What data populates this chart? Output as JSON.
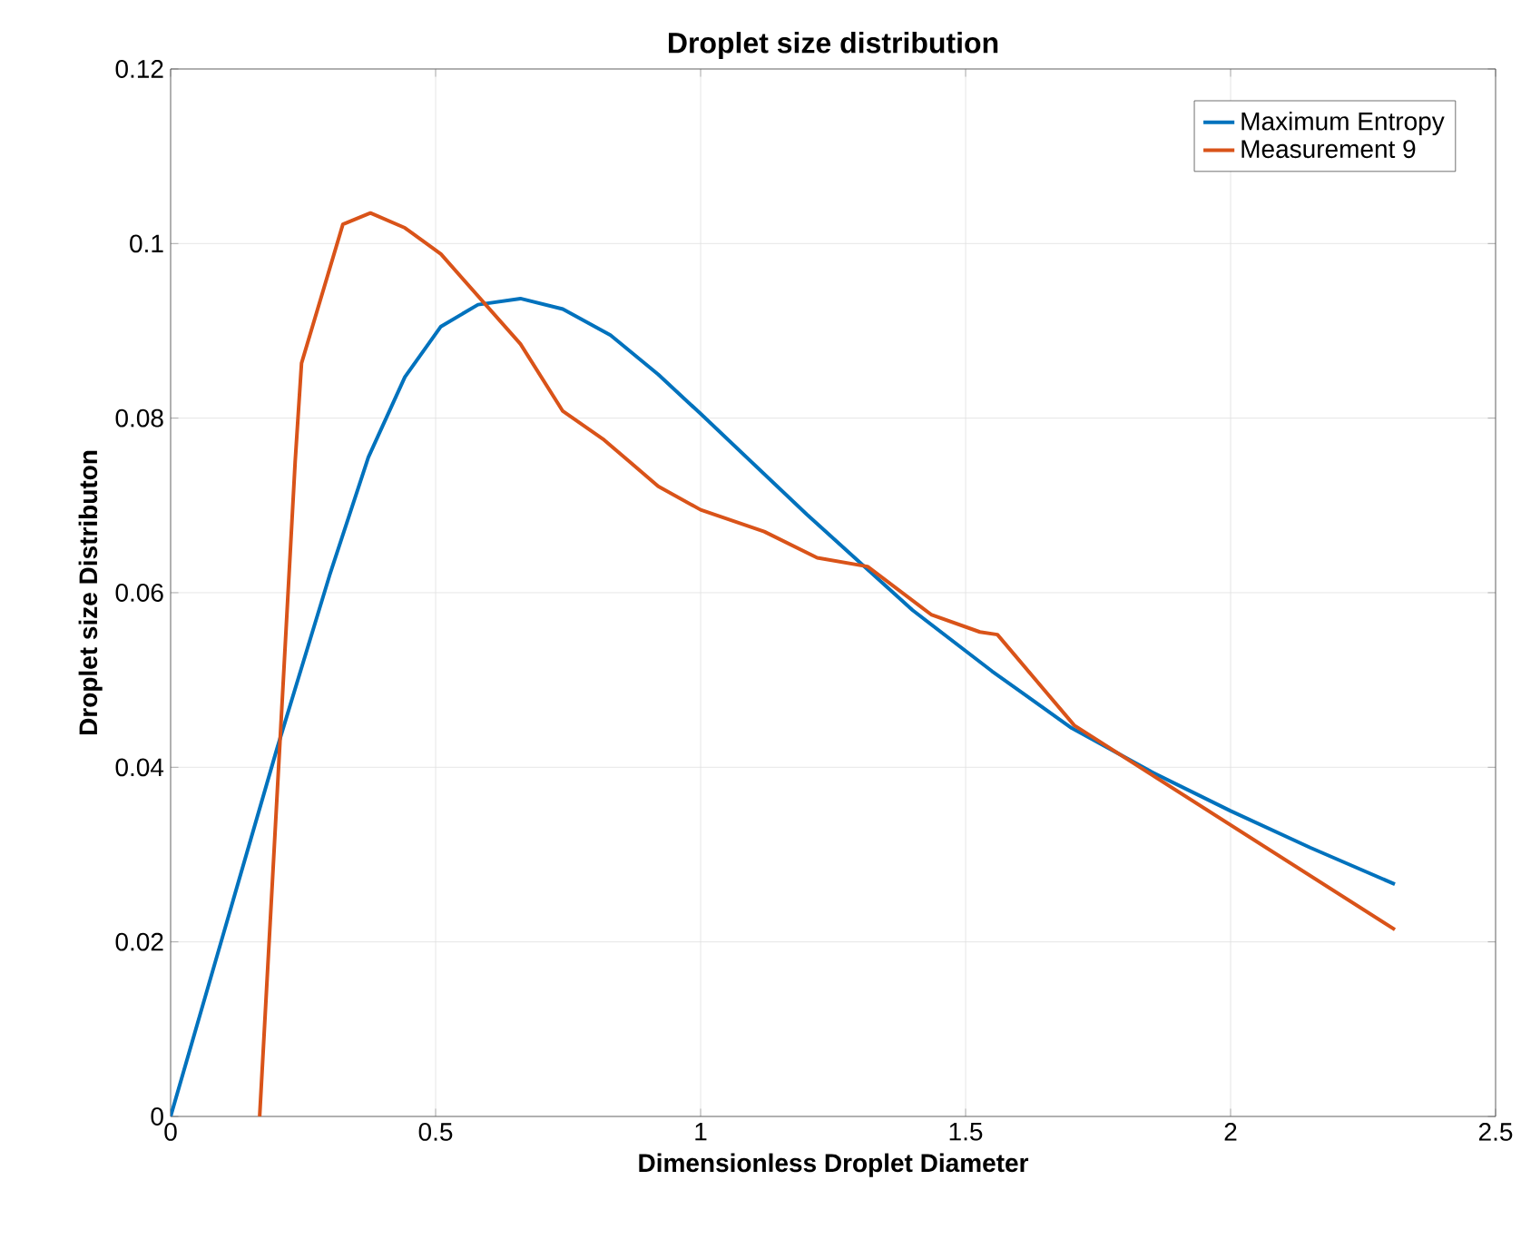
{
  "chart_data": {
    "type": "line",
    "title": "Droplet size distribution",
    "xlabel": "Dimensionless Droplet Diameter",
    "ylabel": "Droplet size Distributon",
    "xlim": [
      0,
      2.5
    ],
    "ylim": [
      0,
      0.12
    ],
    "xticks": [
      0,
      0.5,
      1,
      1.5,
      2,
      2.5
    ],
    "yticks": [
      0,
      0.02,
      0.04,
      0.06,
      0.08,
      0.1,
      0.12
    ],
    "grid": true,
    "legend": "top right",
    "series": [
      {
        "name": "Maximum Entropy",
        "color": "#0072bd",
        "x": [
          0,
          0.1,
          0.2,
          0.3,
          0.373,
          0.442,
          0.51,
          0.58,
          0.66,
          0.74,
          0.83,
          0.92,
          1.0,
          1.2,
          1.4,
          1.55,
          1.7,
          1.85,
          2.0,
          2.15,
          2.31
        ],
        "values": [
          0,
          0.021,
          0.042,
          0.062,
          0.0755,
          0.0847,
          0.0905,
          0.093,
          0.0937,
          0.0925,
          0.0895,
          0.085,
          0.0805,
          0.069,
          0.058,
          0.051,
          0.0445,
          0.0395,
          0.035,
          0.0308,
          0.0266
        ]
      },
      {
        "name": "Measurement 9",
        "color": "#d95319",
        "x": [
          0.168,
          0.235,
          0.247,
          0.325,
          0.377,
          0.442,
          0.51,
          0.66,
          0.74,
          0.818,
          0.92,
          1.0,
          1.12,
          1.22,
          1.315,
          1.435,
          1.527,
          1.56,
          1.705,
          2.31
        ],
        "values": [
          0,
          0.075,
          0.0863,
          0.1022,
          0.1035,
          0.1018,
          0.0988,
          0.0885,
          0.0808,
          0.0775,
          0.0722,
          0.0695,
          0.067,
          0.064,
          0.063,
          0.0575,
          0.0555,
          0.0552,
          0.0448,
          0.0214
        ]
      }
    ]
  }
}
